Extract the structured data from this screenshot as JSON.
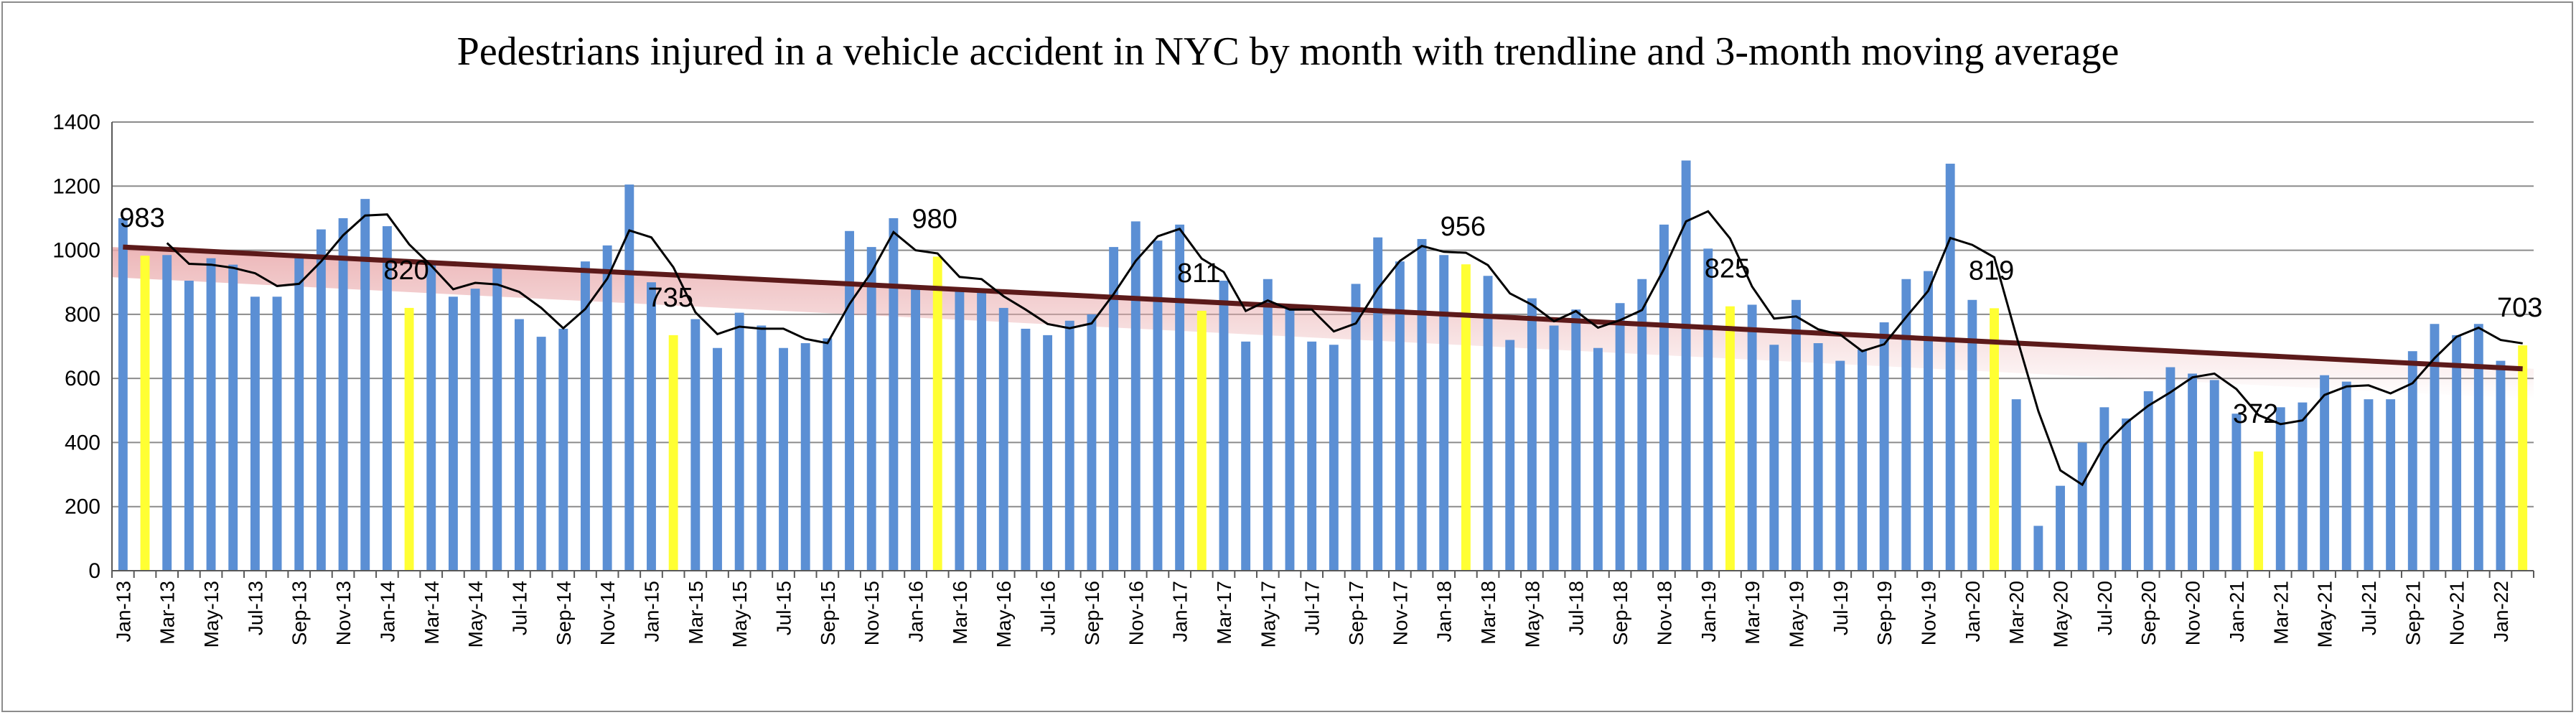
{
  "chart_data": {
    "type": "bar",
    "title": "Pedestrians injured in a vehicle accident in NYC by month with trendline and 3-month moving average",
    "xlabel": "",
    "ylabel": "",
    "ylim": [
      0,
      1400
    ],
    "yticks": [
      0,
      200,
      400,
      600,
      800,
      1000,
      1200,
      1400
    ],
    "grid": true,
    "legend": "none",
    "categories": [
      "Jan-13",
      "Feb-13",
      "Mar-13",
      "Apr-13",
      "May-13",
      "Jun-13",
      "Jul-13",
      "Aug-13",
      "Sep-13",
      "Oct-13",
      "Nov-13",
      "Dec-13",
      "Jan-14",
      "Feb-14",
      "Mar-14",
      "Apr-14",
      "May-14",
      "Jun-14",
      "Jul-14",
      "Aug-14",
      "Sep-14",
      "Oct-14",
      "Nov-14",
      "Dec-14",
      "Jan-15",
      "Feb-15",
      "Mar-15",
      "Apr-15",
      "May-15",
      "Jun-15",
      "Jul-15",
      "Aug-15",
      "Sep-15",
      "Oct-15",
      "Nov-15",
      "Dec-15",
      "Jan-16",
      "Feb-16",
      "Mar-16",
      "Apr-16",
      "May-16",
      "Jun-16",
      "Jul-16",
      "Aug-16",
      "Sep-16",
      "Oct-16",
      "Nov-16",
      "Dec-16",
      "Jan-17",
      "Feb-17",
      "Mar-17",
      "Apr-17",
      "May-17",
      "Jun-17",
      "Jul-17",
      "Aug-17",
      "Sep-17",
      "Oct-17",
      "Nov-17",
      "Dec-17",
      "Jan-18",
      "Feb-18",
      "Mar-18",
      "Apr-18",
      "May-18",
      "Jun-18",
      "Jul-18",
      "Aug-18",
      "Sep-18",
      "Oct-18",
      "Nov-18",
      "Dec-18",
      "Jan-19",
      "Feb-19",
      "Mar-19",
      "Apr-19",
      "May-19",
      "Jun-19",
      "Jul-19",
      "Aug-19",
      "Sep-19",
      "Oct-19",
      "Nov-19",
      "Dec-19",
      "Jan-20",
      "Feb-20",
      "Mar-20",
      "Apr-20",
      "May-20",
      "Jun-20",
      "Jul-20",
      "Aug-20",
      "Sep-20",
      "Oct-20",
      "Nov-20",
      "Dec-20",
      "Jan-21",
      "Feb-21",
      "Mar-21",
      "Apr-21",
      "May-21",
      "Jun-21",
      "Jul-21",
      "Aug-21",
      "Sep-21",
      "Oct-21",
      "Nov-21",
      "Dec-21",
      "Jan-22",
      "Feb-22"
    ],
    "x_tick_labels": [
      "Jan-13",
      "Mar-13",
      "May-13",
      "Jul-13",
      "Sep-13",
      "Nov-13",
      "Jan-14",
      "Mar-14",
      "May-14",
      "Jul-14",
      "Sep-14",
      "Nov-14",
      "Jan-15",
      "Mar-15",
      "May-15",
      "Jul-15",
      "Sep-15",
      "Nov-15",
      "Jan-16",
      "Mar-16",
      "May-16",
      "Jul-16",
      "Sep-16",
      "Nov-16",
      "Jan-17",
      "Mar-17",
      "May-17",
      "Jul-17",
      "Sep-17",
      "Nov-17",
      "Jan-18",
      "Mar-18",
      "May-18",
      "Jul-18",
      "Sep-18",
      "Nov-18",
      "Jan-19",
      "Mar-19",
      "May-19",
      "Jul-19",
      "Sep-19",
      "Nov-19",
      "Jan-20",
      "Mar-20",
      "May-20",
      "Jul-20",
      "Sep-20",
      "Nov-20",
      "Jan-21",
      "Mar-21",
      "May-21",
      "Jul-21",
      "Sep-21",
      "Nov-21",
      "Jan-22"
    ],
    "values": [
      1100,
      983,
      985,
      905,
      975,
      955,
      855,
      855,
      975,
      1065,
      1100,
      1160,
      1075,
      820,
      960,
      855,
      880,
      945,
      785,
      730,
      755,
      965,
      1015,
      1205,
      900,
      735,
      785,
      695,
      805,
      765,
      695,
      710,
      725,
      1060,
      1010,
      1100,
      890,
      980,
      880,
      870,
      820,
      755,
      735,
      780,
      800,
      1010,
      1090,
      1030,
      1080,
      811,
      905,
      715,
      910,
      820,
      715,
      705,
      895,
      1040,
      965,
      1035,
      985,
      956,
      920,
      720,
      850,
      765,
      815,
      695,
      835,
      910,
      1080,
      1280,
      1005,
      825,
      830,
      705,
      845,
      710,
      655,
      690,
      775,
      910,
      935,
      1270,
      845,
      819,
      535,
      140,
      265,
      400,
      510,
      475,
      560,
      635,
      615,
      595,
      490,
      372,
      510,
      525,
      610,
      590,
      535,
      535,
      685,
      770,
      735,
      770,
      655,
      703
    ],
    "highlighted_labels": [
      {
        "category": "Feb-13",
        "label": "983"
      },
      {
        "category": "Feb-14",
        "label": "820"
      },
      {
        "category": "Feb-15",
        "label": "735"
      },
      {
        "category": "Feb-16",
        "label": "980"
      },
      {
        "category": "Feb-17",
        "label": "811"
      },
      {
        "category": "Feb-18",
        "label": "956"
      },
      {
        "category": "Feb-19",
        "label": "825"
      },
      {
        "category": "Feb-20",
        "label": "819"
      },
      {
        "category": "Feb-21",
        "label": "372"
      },
      {
        "category": "Feb-22",
        "label": "703"
      }
    ],
    "trendline": {
      "type": "linear",
      "start": 1010,
      "end": 630
    },
    "moving_average_period": 3,
    "colors": {
      "bar": "#5b8fd4",
      "highlight_bar": "#ffff33",
      "trendline": "#5c1a1a",
      "trend_band": "#e9a9ab",
      "moving_average": "#000000",
      "grid": "#8c8c8c"
    }
  }
}
